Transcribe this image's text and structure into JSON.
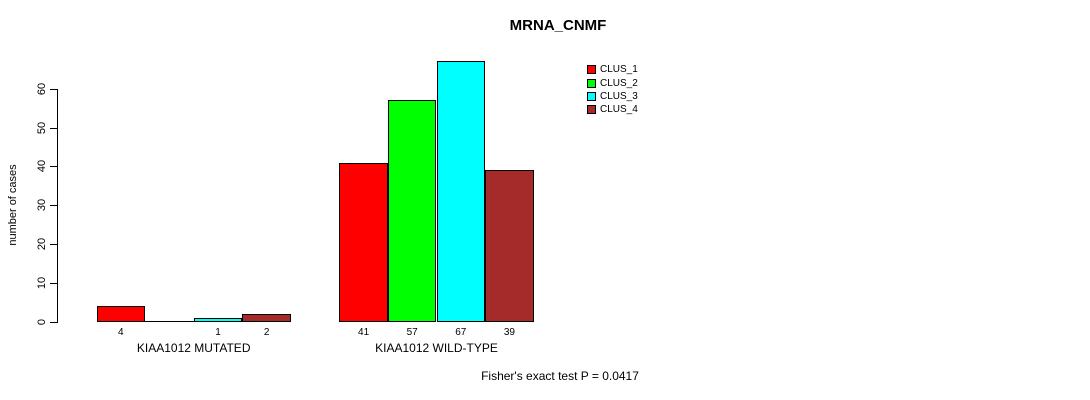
{
  "chart_data": {
    "type": "bar",
    "title": "MRNA_CNMF",
    "xlabel": "",
    "ylabel": "number of cases",
    "categories": [
      "KIAA1012 MUTATED",
      "KIAA1012 WILD-TYPE"
    ],
    "series": [
      {
        "name": "CLUS_1",
        "color": "#FF0000",
        "values": [
          4,
          41
        ]
      },
      {
        "name": "CLUS_2",
        "color": "#00FF00",
        "values": [
          0,
          57
        ]
      },
      {
        "name": "CLUS_3",
        "color": "#00FFFF",
        "values": [
          1,
          67
        ]
      },
      {
        "name": "CLUS_4",
        "color": "#A52A2A",
        "values": [
          2,
          39
        ]
      }
    ],
    "bar_value_labels": [
      [
        "4",
        "",
        "1",
        "2"
      ],
      [
        "41",
        "57",
        "67",
        "39"
      ]
    ],
    "yticks": [
      0,
      10,
      20,
      30,
      40,
      50,
      60
    ],
    "ylim": [
      0,
      60
    ],
    "grid": false,
    "legend_position": "top-right",
    "legend_labels": [
      "CLUS_1",
      "CLUS_2",
      "CLUS_3",
      "CLUS_4"
    ],
    "annotation": "Fisher's exact test P = 0.0417",
    "colors": {
      "background": "#FFFFFF",
      "axis": "#000000",
      "text": "#000000"
    }
  }
}
